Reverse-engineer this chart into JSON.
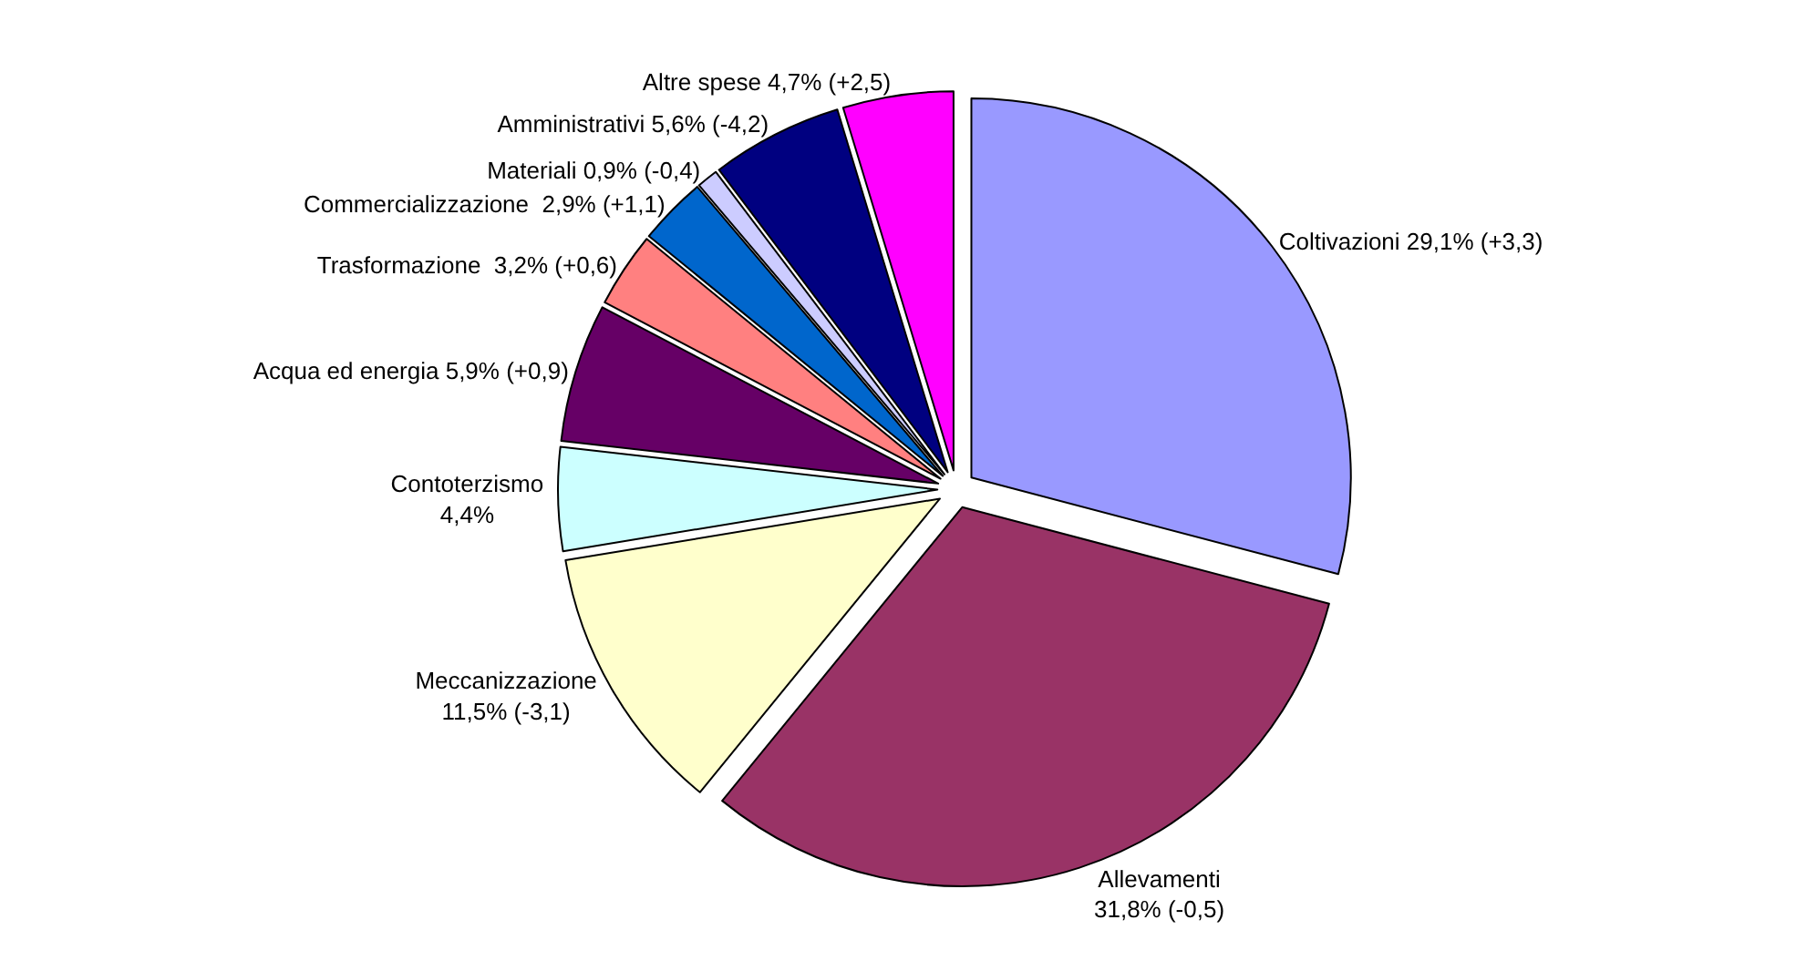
{
  "chart_data": {
    "type": "pie",
    "categories": [
      "Coltivazioni 29,1% (+3,3)",
      "Allevamenti\n31,8% (-0,5)",
      "Meccanizzazione\n11,5% (-3,1)",
      "Contoterzismo\n4,4%",
      "Acqua ed energia 5,9% (+0,9)",
      "Trasformazione  3,2% (+0,6)",
      "Commercializzazione  2,9% (+1,1)",
      "Materiali 0,9% (-0,4)",
      "Amministrativi 5,6% (-4,2)",
      "Altre spese 4,7% (+2,5)"
    ],
    "values": [
      29.1,
      31.8,
      11.5,
      4.4,
      5.9,
      3.2,
      2.9,
      0.9,
      5.6,
      4.7
    ],
    "colors": [
      "#9999ff",
      "#993366",
      "#ffffcc",
      "#ccffff",
      "#660066",
      "#ff8080",
      "#0066cc",
      "#ccccff",
      "#000080",
      "#ff00ff"
    ],
    "legend": false
  }
}
